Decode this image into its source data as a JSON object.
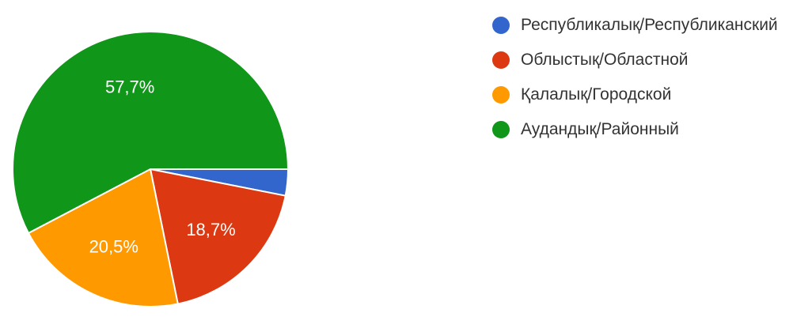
{
  "chart_data": {
    "type": "pie",
    "title": "",
    "categories": [
      "Республикалық/Республиканский",
      "Облыстық/Областной",
      "Қалалық/Городской",
      "Аудандық/Районный"
    ],
    "values": [
      3.1,
      18.7,
      20.5,
      57.7
    ],
    "data_labels": [
      "",
      "18,7%",
      "20,5%",
      "57,7%"
    ],
    "colors": [
      "#3366cc",
      "#dc3912",
      "#ff9900",
      "#109618"
    ],
    "legend_position": "right"
  }
}
